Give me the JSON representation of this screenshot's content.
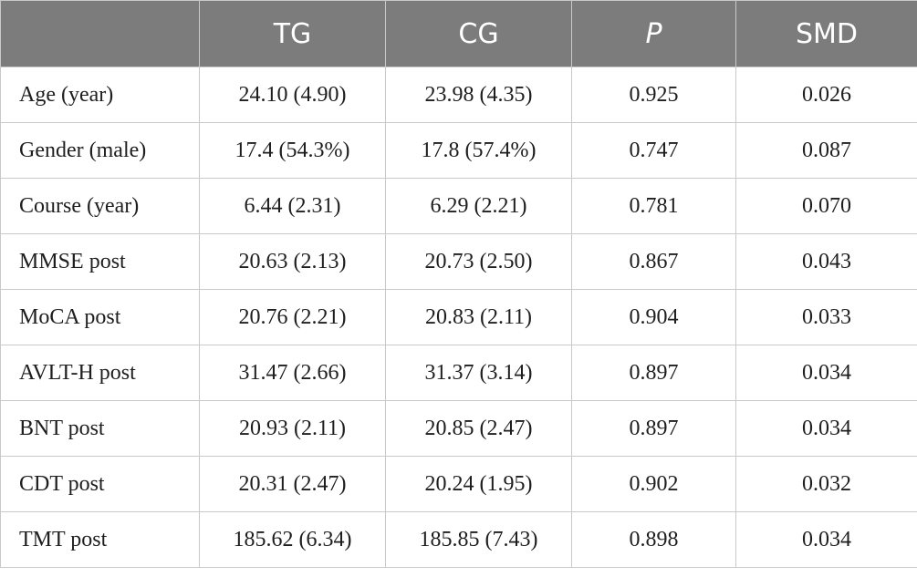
{
  "table": {
    "headers": [
      "",
      "TG",
      "CG",
      "P",
      "SMD"
    ],
    "rows": [
      [
        "Age (year)",
        "24.10 (4.90)",
        "23.98 (4.35)",
        "0.925",
        "0.026"
      ],
      [
        "Gender (male)",
        "17.4 (54.3%)",
        "17.8 (57.4%)",
        "0.747",
        "0.087"
      ],
      [
        "Course (year)",
        "6.44 (2.31)",
        "6.29 (2.21)",
        "0.781",
        "0.070"
      ],
      [
        "MMSE post",
        "20.63 (2.13)",
        "20.73 (2.50)",
        "0.867",
        "0.043"
      ],
      [
        "MoCA post",
        "20.76 (2.21)",
        "20.83 (2.11)",
        "0.904",
        "0.033"
      ],
      [
        "AVLT-H post",
        "31.47 (2.66)",
        "31.37 (3.14)",
        "0.897",
        "0.034"
      ],
      [
        "BNT post",
        "20.93 (2.11)",
        "20.85 (2.47)",
        "0.897",
        "0.034"
      ],
      [
        "CDT post",
        "20.31 (2.47)",
        "20.24 (1.95)",
        "0.902",
        "0.032"
      ],
      [
        "TMT post",
        "185.62 (6.34)",
        "185.85 (7.43)",
        "0.898",
        "0.034"
      ]
    ]
  },
  "colors": {
    "header_bg": "#7c7c7c",
    "header_text": "#ffffff",
    "grid": "#c9c9c9",
    "body_text": "#1e1e1e"
  }
}
